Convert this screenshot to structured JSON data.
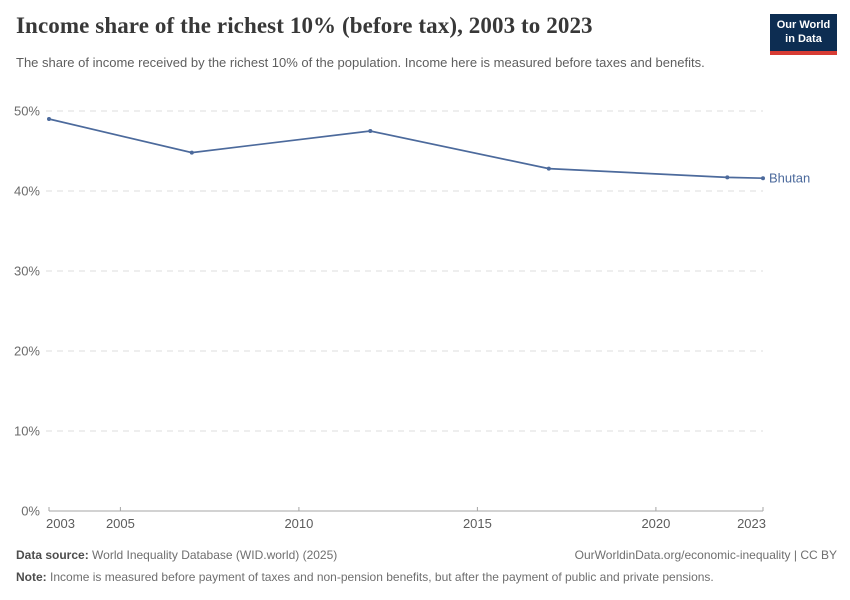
{
  "header": {
    "title": "Income share of the richest 10% (before tax), 2003 to 2023",
    "subtitle": "The share of income received by the richest 10% of the population. Income here is measured before taxes and benefits.",
    "logo": {
      "line1": "Our World",
      "line2": "in Data"
    }
  },
  "chart_data": {
    "type": "line",
    "title": "Income share of the richest 10% (before tax), 2003 to 2023",
    "xlabel": "",
    "ylabel": "",
    "xlim": [
      2003,
      2023
    ],
    "ylim": [
      0,
      50
    ],
    "x_ticks": [
      2003,
      2005,
      2010,
      2015,
      2020,
      2023
    ],
    "y_ticks": [
      0,
      10,
      20,
      30,
      40,
      50
    ],
    "y_tick_suffix": "%",
    "grid": "horizontal-dashed",
    "legend": "line-end-label",
    "series": [
      {
        "name": "Bhutan",
        "color": "#4c6a9c",
        "points": [
          [
            2003,
            49.0
          ],
          [
            2007,
            44.8
          ],
          [
            2012,
            47.5
          ],
          [
            2017,
            42.8
          ],
          [
            2022,
            41.7
          ],
          [
            2023,
            41.6
          ]
        ]
      }
    ]
  },
  "footer": {
    "source_label": "Data source:",
    "source_text": "World Inequality Database (WID.world) (2025)",
    "url_text": "OurWorldinData.org/economic-inequality | CC BY",
    "note_label": "Note:",
    "note_text": "Income is measured before payment of taxes and non-pension benefits, but after the payment of public and private pensions."
  },
  "colors": {
    "line": "#4c6a9c",
    "logo_bg": "#0d2d52",
    "logo_red": "#d73c34",
    "grid": "#dcdcdc",
    "axis": "#a5a5a5"
  }
}
